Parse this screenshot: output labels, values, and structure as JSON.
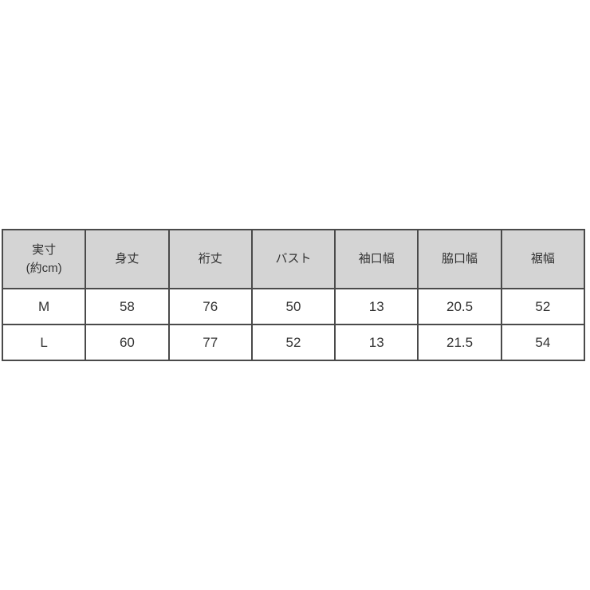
{
  "page": {
    "background_color": "#ffffff"
  },
  "colors": {
    "table_border": "#4a4a4a",
    "header_background": "#d4d4d4",
    "cell_background": "#ffffff",
    "text": "#333333"
  },
  "chart_data": {
    "type": "table",
    "unit_note": "(約cm)",
    "columns": [
      "実寸\n(約cm)",
      "身丈",
      "裄丈",
      "バスト",
      "袖口幅",
      "脇口幅",
      "裾幅"
    ],
    "rows": [
      [
        "M",
        "58",
        "76",
        "50",
        "13",
        "20.5",
        "52"
      ],
      [
        "L",
        "60",
        "77",
        "52",
        "13",
        "21.5",
        "54"
      ]
    ]
  }
}
